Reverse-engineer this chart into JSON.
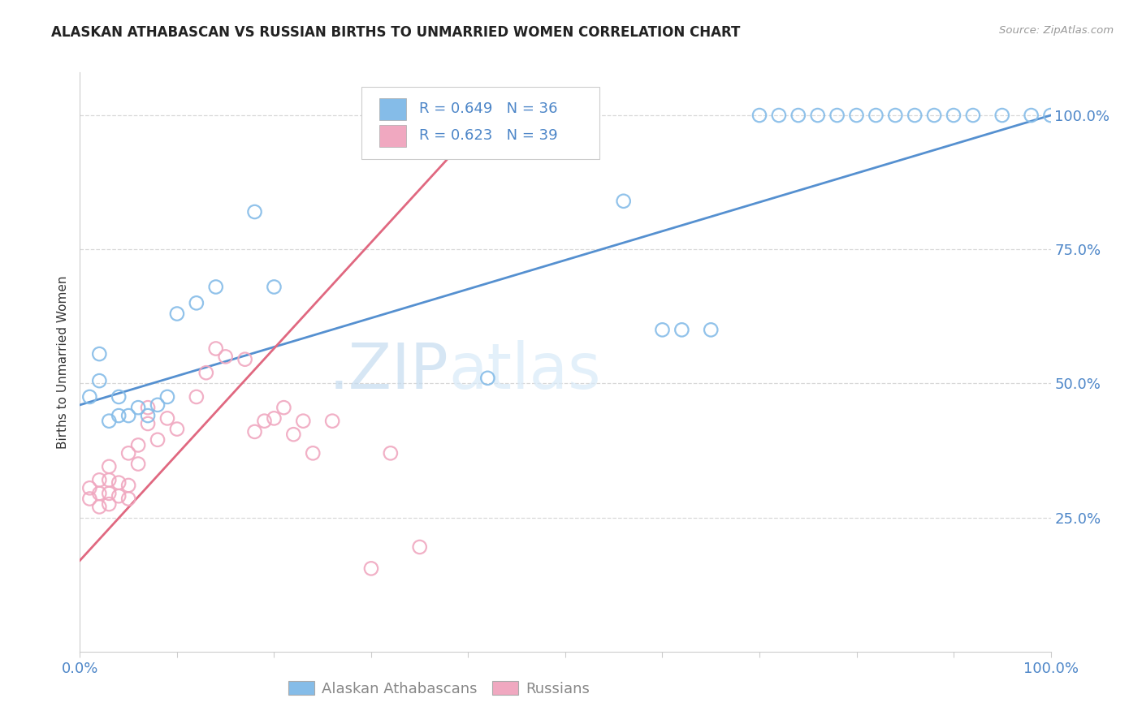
{
  "title": "ALASKAN ATHABASCAN VS RUSSIAN BIRTHS TO UNMARRIED WOMEN CORRELATION CHART",
  "source": "Source: ZipAtlas.com",
  "ylabel": "Births to Unmarried Women",
  "legend_label1": "Alaskan Athabascans",
  "legend_label2": "Russians",
  "R_blue": "R = 0.649",
  "N_blue": "N = 36",
  "R_pink": "R = 0.623",
  "N_pink": "N = 39",
  "watermark_zip": ".ZIP",
  "watermark_atlas": "atlas",
  "blue_color": "#85bce8",
  "pink_color": "#f0a8c0",
  "blue_line_color": "#5590d0",
  "pink_line_color": "#e06880",
  "blue_x": [
    0.01,
    0.02,
    0.02,
    0.03,
    0.04,
    0.04,
    0.05,
    0.06,
    0.07,
    0.08,
    0.09,
    0.1,
    0.12,
    0.14,
    0.18,
    0.2,
    0.42,
    0.56,
    0.6,
    0.62,
    0.65,
    0.7,
    0.72,
    0.74,
    0.76,
    0.78,
    0.8,
    0.82,
    0.84,
    0.86,
    0.88,
    0.9,
    0.92,
    0.95,
    0.98,
    1.0
  ],
  "blue_y": [
    0.475,
    0.505,
    0.555,
    0.43,
    0.44,
    0.475,
    0.44,
    0.455,
    0.44,
    0.46,
    0.475,
    0.63,
    0.65,
    0.68,
    0.82,
    0.68,
    0.51,
    0.84,
    0.6,
    0.6,
    0.6,
    1.0,
    1.0,
    1.0,
    1.0,
    1.0,
    1.0,
    1.0,
    1.0,
    1.0,
    1.0,
    1.0,
    1.0,
    1.0,
    1.0,
    1.0
  ],
  "pink_x": [
    0.01,
    0.01,
    0.02,
    0.02,
    0.02,
    0.03,
    0.03,
    0.03,
    0.03,
    0.04,
    0.04,
    0.05,
    0.05,
    0.05,
    0.06,
    0.06,
    0.07,
    0.07,
    0.08,
    0.09,
    0.1,
    0.12,
    0.13,
    0.14,
    0.15,
    0.17,
    0.18,
    0.19,
    0.2,
    0.21,
    0.22,
    0.23,
    0.24,
    0.26,
    0.3,
    0.32,
    0.35,
    0.38,
    0.42
  ],
  "pink_y": [
    0.285,
    0.305,
    0.27,
    0.295,
    0.32,
    0.275,
    0.295,
    0.32,
    0.345,
    0.29,
    0.315,
    0.285,
    0.31,
    0.37,
    0.35,
    0.385,
    0.425,
    0.455,
    0.395,
    0.435,
    0.415,
    0.475,
    0.52,
    0.565,
    0.55,
    0.545,
    0.41,
    0.43,
    0.435,
    0.455,
    0.405,
    0.43,
    0.37,
    0.43,
    0.155,
    0.37,
    0.195,
    1.0,
    1.0
  ],
  "blue_line_x0": 0.0,
  "blue_line_y0": 0.46,
  "blue_line_x1": 1.0,
  "blue_line_y1": 1.0,
  "pink_line_x0": 0.0,
  "pink_line_y0": 0.17,
  "pink_line_x1": 0.43,
  "pink_line_y1": 1.02,
  "xlim": [
    0.0,
    1.0
  ],
  "ylim": [
    0.0,
    1.08
  ],
  "figsize": [
    14.06,
    8.92
  ],
  "dpi": 100,
  "yticks": [
    0.25,
    0.5,
    0.75,
    1.0
  ],
  "ytick_labels": [
    "25.0%",
    "50.0%",
    "75.0%",
    "100.0%"
  ],
  "xtick_labels_show": [
    "0.0%",
    "100.0%"
  ],
  "grid_color": "#d8d8d8",
  "spine_color": "#cccccc"
}
